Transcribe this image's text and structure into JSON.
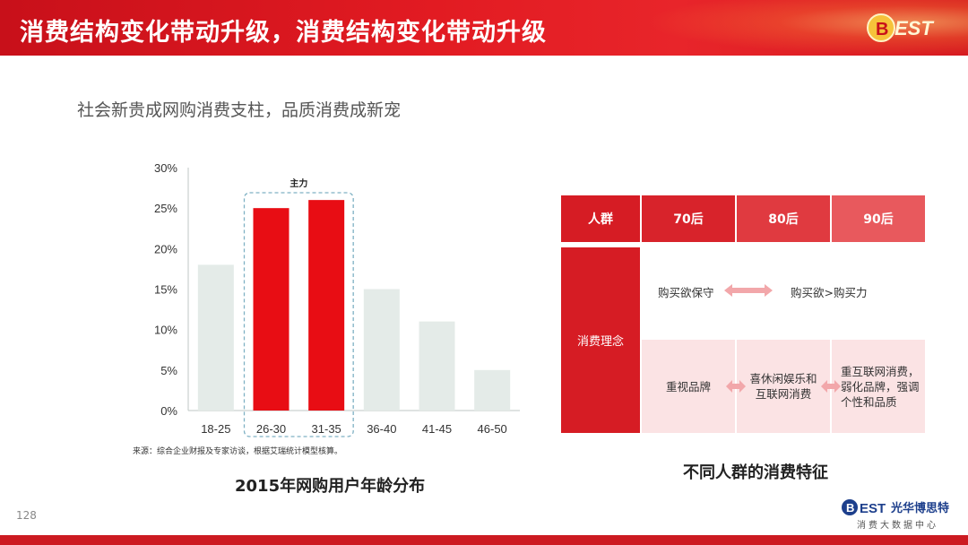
{
  "header": {
    "title": "消费结构变化带动升级，消费结构变化带动升级",
    "logo_text": "BEST"
  },
  "subtitle": "社会新贵成网购消费支柱，品质消费成新宠",
  "chart_data": {
    "type": "bar",
    "categories": [
      "18-25",
      "26-30",
      "31-35",
      "36-40",
      "41-45",
      "46-50"
    ],
    "values": [
      18,
      25,
      26,
      15,
      11,
      5
    ],
    "highlight": [
      false,
      true,
      true,
      false,
      false,
      false
    ],
    "highlight_label": "主力",
    "yticks": [
      "30%",
      "25%",
      "20%",
      "15%",
      "10%",
      "5%",
      "0%"
    ],
    "ylim": [
      0,
      30
    ],
    "colors": {
      "normal": "#e4ebe8",
      "highlight": "#e80d14"
    },
    "source": "来源：综合企业财报及专家访谈，根据艾瑞统计模型核算。",
    "caption": "2015年网购用户年龄分布"
  },
  "table": {
    "headers": [
      "人群",
      "70后",
      "80后",
      "90后"
    ],
    "row_label": "消费理念",
    "upper_left": "购买欲保守",
    "upper_right": "购买欲>购买力",
    "lower": [
      "重视品牌",
      "喜休闲娱乐和互联网消费",
      "重互联网消费，弱化品牌，强调个性和品质"
    ],
    "caption": "不同人群的消费特征"
  },
  "page_number": "128",
  "footer": {
    "logo_text": "BEST光华博思特",
    "sub_text": "消费大数据中心"
  }
}
